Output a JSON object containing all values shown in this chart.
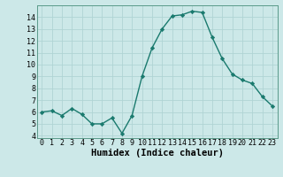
{
  "x": [
    0,
    1,
    2,
    3,
    4,
    5,
    6,
    7,
    8,
    9,
    10,
    11,
    12,
    13,
    14,
    15,
    16,
    17,
    18,
    19,
    20,
    21,
    22,
    23
  ],
  "y": [
    6.0,
    6.1,
    5.7,
    6.3,
    5.8,
    5.0,
    5.0,
    5.5,
    4.2,
    5.7,
    9.0,
    11.4,
    13.0,
    14.1,
    14.2,
    14.5,
    14.4,
    12.3,
    10.5,
    9.2,
    8.7,
    8.4,
    7.3,
    6.5
  ],
  "xlabel": "Humidex (Indice chaleur)",
  "xlim": [
    -0.5,
    23.5
  ],
  "ylim": [
    3.8,
    15.0
  ],
  "yticks": [
    4,
    5,
    6,
    7,
    8,
    9,
    10,
    11,
    12,
    13,
    14
  ],
  "xticks": [
    0,
    1,
    2,
    3,
    4,
    5,
    6,
    7,
    8,
    9,
    10,
    11,
    12,
    13,
    14,
    15,
    16,
    17,
    18,
    19,
    20,
    21,
    22,
    23
  ],
  "line_color": "#1a7a6e",
  "marker": "D",
  "marker_size": 2.2,
  "bg_color": "#cce8e8",
  "grid_color": "#b0d4d4",
  "tick_label_fontsize": 6.0,
  "xlabel_fontsize": 7.5,
  "linewidth": 1.0
}
